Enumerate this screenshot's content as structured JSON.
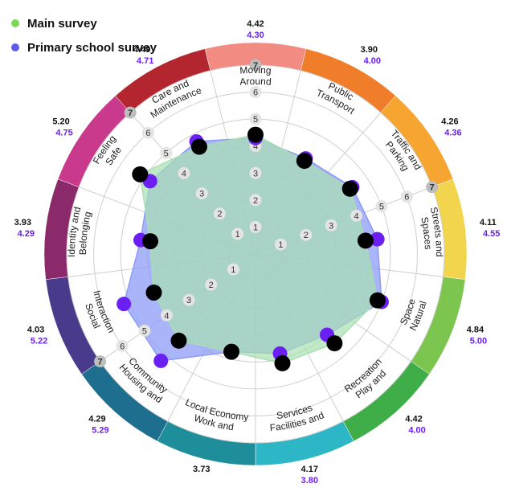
{
  "legend": {
    "main_label": "Main survey",
    "primary_label": "Primary school survey",
    "main_color": "#7ed957",
    "primary_color": "#5b5cf0"
  },
  "chart_data": {
    "type": "radar",
    "scale_max": 7,
    "scale_ticks": [
      1,
      2,
      3,
      4,
      5,
      6,
      7
    ],
    "categories": [
      "Moving Around",
      "Public Transport",
      "Traffic and Parking",
      "Streets and Spaces",
      "Natural Space",
      "Play and Recreation",
      "Facilities and Services",
      "Work and Local Economy",
      "Housing and Community",
      "Social Interaction",
      "Identity and Belonging",
      "Feeling Safe",
      "Care and Maintenance"
    ],
    "series": [
      {
        "name": "Main survey",
        "values": [
          4.42,
          3.9,
          4.26,
          4.11,
          4.84,
          4.42,
          4.17,
          3.73,
          4.29,
          4.03,
          3.93,
          5.2,
          4.49
        ],
        "fill_color": "#a8dfb0",
        "marker_color": "#000000"
      },
      {
        "name": "Primary school survey",
        "values": [
          4.3,
          4.0,
          4.36,
          4.55,
          5.0,
          4.0,
          3.8,
          3.73,
          5.29,
          5.22,
          4.29,
          4.75,
          4.71
        ],
        "fill_color": "#8c9cf5",
        "marker_color": "#6b1ff2"
      }
    ],
    "value_labels": [
      {
        "main": "4.42",
        "primary": "4.30"
      },
      {
        "main": "3.90",
        "primary": "4.00"
      },
      {
        "main": "4.26",
        "primary": "4.36"
      },
      {
        "main": "4.11",
        "primary": "4.55"
      },
      {
        "main": "4.84",
        "primary": "5.00"
      },
      {
        "main": "4.42",
        "primary": "4.00"
      },
      {
        "main": "4.17",
        "primary": "3.80"
      },
      {
        "main": "3.73",
        "primary": ""
      },
      {
        "main": "4.29",
        "primary": "5.29"
      },
      {
        "main": "4.03",
        "primary": "5.22"
      },
      {
        "main": "3.93",
        "primary": "4.29"
      },
      {
        "main": "5.20",
        "primary": "4.75"
      },
      {
        "main": "4.49",
        "primary": "4.71"
      }
    ],
    "category_colors": [
      "#f28b82",
      "#ef7d2a",
      "#f6a531",
      "#f2d54c",
      "#7cc64f",
      "#3fae48",
      "#2cb6c6",
      "#1e8f9a",
      "#1e6f8f",
      "#4a3a8c",
      "#8a2a6a",
      "#c93a8c",
      "#b3262f"
    ]
  }
}
